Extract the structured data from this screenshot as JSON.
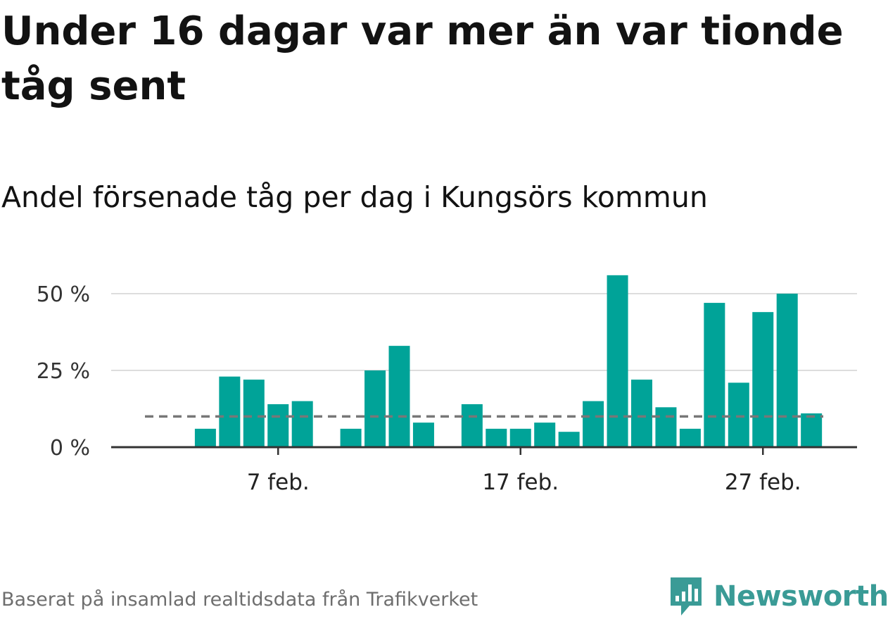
{
  "title": "Under 16 dagar var mer än var tionde tåg sent",
  "subtitle": "Andel försenade tåg per dag i Kungsörs kommun",
  "footer": {
    "source": "Baserat på insamlad realtidsdata från Trafikverket",
    "brand": "Newsworthy",
    "brand_icon": "newsworthy-logo-icon"
  },
  "colors": {
    "bar": "#00A398",
    "reference_line": "#777777",
    "grid": "#dddddd",
    "axis": "#333333",
    "brand": "#3a9b96"
  },
  "chart_data": {
    "type": "bar",
    "x": [
      "2 feb.",
      "3 feb.",
      "4 feb.",
      "5 feb.",
      "6 feb.",
      "7 feb.",
      "8 feb.",
      "9 feb.",
      "10 feb.",
      "11 feb.",
      "12 feb.",
      "13 feb.",
      "14 feb.",
      "15 feb.",
      "16 feb.",
      "17 feb.",
      "18 feb.",
      "19 feb.",
      "20 feb.",
      "21 feb.",
      "22 feb.",
      "23 feb.",
      "24 feb.",
      "25 feb.",
      "26 feb.",
      "27 feb.",
      "28 feb.",
      "1 mar."
    ],
    "values": [
      null,
      null,
      6,
      23,
      22,
      14,
      15,
      0,
      6,
      25,
      33,
      8,
      0,
      14,
      6,
      6,
      8,
      5,
      15,
      56,
      22,
      13,
      6,
      47,
      21,
      44,
      50,
      11
    ],
    "reference_line": 10,
    "ylim": [
      0,
      56
    ],
    "yticks": [
      {
        "value": 0,
        "label": "0 %"
      },
      {
        "value": 25,
        "label": "25 %"
      },
      {
        "value": 50,
        "label": "50 %"
      }
    ],
    "xticks": [
      {
        "x": "7 feb.",
        "label": "7 feb."
      },
      {
        "x": "17 feb.",
        "label": "17 feb."
      },
      {
        "x": "27 feb.",
        "label": "27 feb."
      }
    ],
    "xlabel": "",
    "ylabel": "",
    "grid": true,
    "legend": false
  }
}
